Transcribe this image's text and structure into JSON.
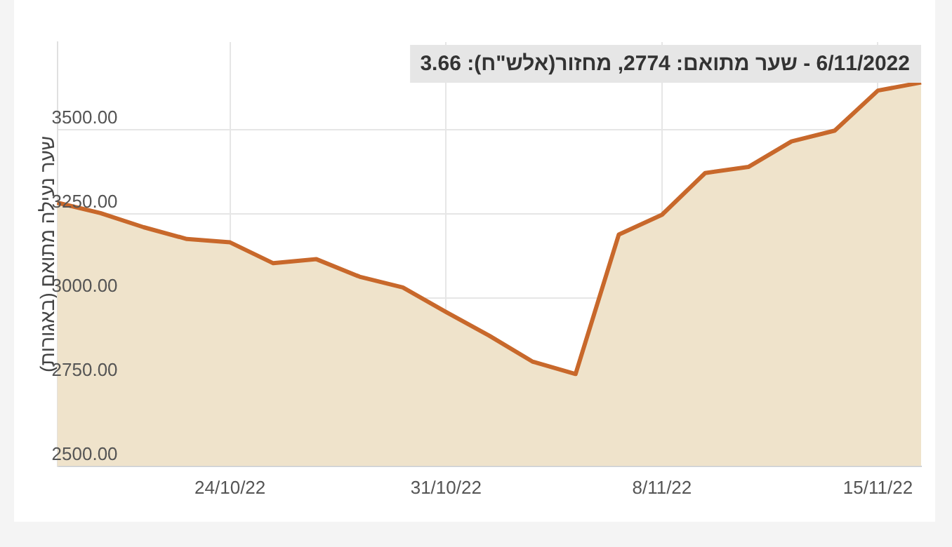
{
  "chart_data": {
    "type": "area",
    "ylabel": "שער נעילה מתואם (באגורות)",
    "categories": [
      null,
      null,
      null,
      null,
      "24/10/22",
      null,
      null,
      null,
      null,
      "31/10/22",
      null,
      null,
      null,
      null,
      "8/11/22",
      null,
      null,
      null,
      null,
      "15/11/22",
      null
    ],
    "series": [
      {
        "color": "#c8682b",
        "values": [
          3283,
          3252,
          3210,
          3175,
          3165,
          3103,
          3115,
          3063,
          3031,
          2958,
          2888,
          2811,
          2774,
          3188,
          3247,
          3371,
          3389,
          3465,
          3497,
          3616,
          3640
        ]
      }
    ],
    "ylim": [
      2500,
      3760
    ],
    "yticks": [
      {
        "value": 2500,
        "label": "2500.00"
      },
      {
        "value": 2750,
        "label": "2750.00"
      },
      {
        "value": 3000,
        "label": "3000.00"
      },
      {
        "value": 3250,
        "label": "3250.00"
      },
      {
        "value": 3500,
        "label": "3500.00"
      }
    ],
    "annotations": [
      "6/11/2022 - שער מתואם: 2774, מחזור(אלש\"ח): 3.66"
    ],
    "grid": true,
    "legend": false,
    "marker": "none",
    "line_style": "solid"
  }
}
